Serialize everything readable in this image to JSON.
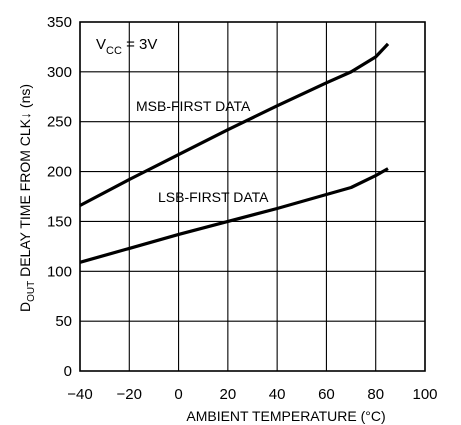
{
  "chart_data": {
    "type": "line",
    "xlabel": "AMBIENT TEMPERATURE (°C)",
    "ylabel": {
      "prefix": "D",
      "prefix_sub": "OUT",
      "main": " DELAY TIME FROM CLK",
      "arrow": "↓",
      "unit": " (ns)"
    },
    "xlim": [
      -40,
      100
    ],
    "ylim": [
      0,
      350
    ],
    "x_ticks": [
      -40,
      -20,
      0,
      20,
      40,
      60,
      80,
      100
    ],
    "y_ticks": [
      0,
      50,
      100,
      150,
      200,
      250,
      300,
      350
    ],
    "x_tick_labels": [
      "−40",
      "−20",
      "0",
      "20",
      "40",
      "60",
      "80",
      "100"
    ],
    "y_tick_labels": [
      "0",
      "50",
      "100",
      "150",
      "200",
      "250",
      "300",
      "350"
    ],
    "grid": true,
    "legend": "none",
    "annotation": {
      "main": "V",
      "sub": "CC",
      "rest": " = 3V"
    },
    "series": [
      {
        "name": "MSB-FIRST DATA",
        "x": [
          -40,
          -20,
          0,
          20,
          40,
          60,
          70,
          80,
          85
        ],
        "y": [
          166,
          192,
          217,
          242,
          266,
          289,
          300,
          315,
          328
        ]
      },
      {
        "name": "LSB-FIRST DATA",
        "x": [
          -40,
          -20,
          0,
          20,
          40,
          60,
          70,
          80,
          85
        ],
        "y": [
          109,
          123,
          137,
          150,
          163,
          177,
          184,
          196,
          203
        ]
      }
    ]
  }
}
